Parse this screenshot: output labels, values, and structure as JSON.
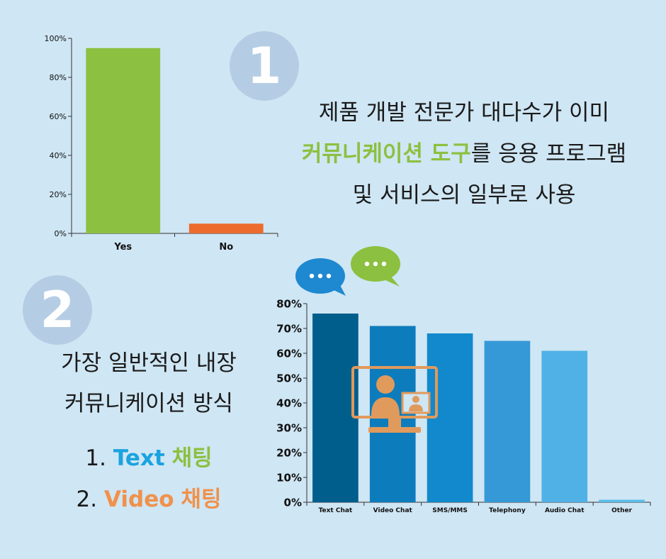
{
  "colors": {
    "background": "#cfe6f4",
    "circle": "#b5cde4",
    "green": "#8cc040",
    "orange_bar": "#ec6b2d",
    "text_blue": "#1aa3e0",
    "text_orange": "#f0914c",
    "bubble_blue": "#1e88d0",
    "bubble_green": "#8cc040",
    "monitor": "#e09a5c"
  },
  "section1": {
    "number": "1",
    "line1": "제품 개발 전문가 대다수가 이미",
    "line2_highlight": "커뮤니케이션 도구",
    "line2_rest": "를 응용 프로그램",
    "line3": "및 서비스의 일부로 사용"
  },
  "section2": {
    "number": "2",
    "line1": "가장 일반적인 내장",
    "line2": "커뮤니케이션 방식",
    "item1_prefix": "1.",
    "item1_en": "Text",
    "item1_ko": "채팅",
    "item2_prefix": "2.",
    "item2_en": "Video",
    "item2_ko": "채팅"
  },
  "icons": {
    "bubble_blue": "speech-bubble-icon",
    "bubble_green": "speech-bubble-icon",
    "monitor": "video-monitor-icon"
  },
  "chart_data": [
    {
      "type": "bar",
      "categories": [
        "Yes",
        "No"
      ],
      "values": [
        95,
        5
      ],
      "colors": [
        "#8cc040",
        "#ec6b2d"
      ],
      "ylim": [
        0,
        100
      ],
      "yticks": [
        "0%",
        "20%",
        "40%",
        "60%",
        "80%",
        "100%"
      ],
      "ytick_values": [
        0,
        20,
        40,
        60,
        80,
        100
      ],
      "title": "",
      "xlabel": "",
      "ylabel": "",
      "grid": false
    },
    {
      "type": "bar",
      "categories": [
        "Text Chat",
        "Video Chat",
        "SMS/MMS",
        "Telephony",
        "Audio Chat",
        "Other"
      ],
      "values": [
        76,
        71,
        68,
        65,
        61,
        1
      ],
      "colors": [
        "#005e8c",
        "#0d7cbc",
        "#1189cc",
        "#3499d6",
        "#4fb1e6",
        "#5abcea"
      ],
      "ylim": [
        0,
        80
      ],
      "yticks": [
        "0%",
        "10%",
        "20%",
        "30%",
        "40%",
        "50%",
        "60%",
        "70%",
        "80%"
      ],
      "ytick_values": [
        0,
        10,
        20,
        30,
        40,
        50,
        60,
        70,
        80
      ],
      "title": "",
      "xlabel": "",
      "ylabel": "",
      "grid": false
    }
  ]
}
